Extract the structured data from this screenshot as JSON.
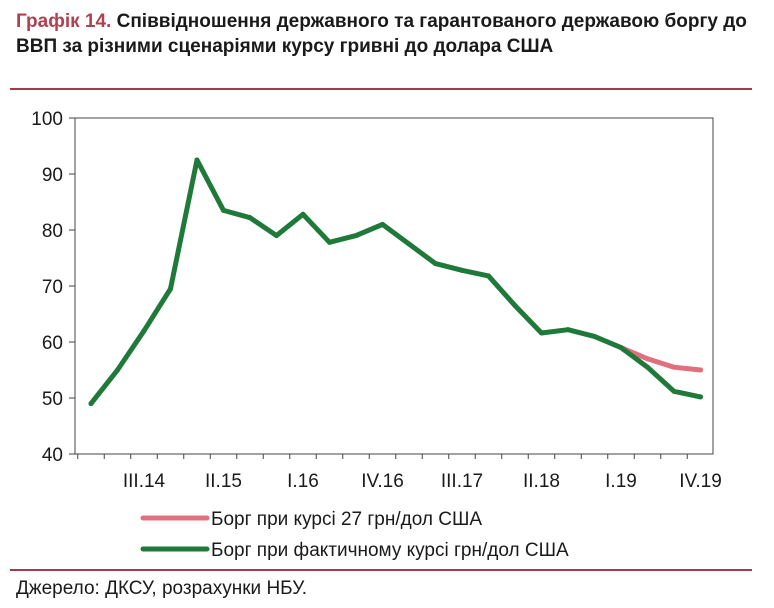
{
  "title": {
    "number": "Графік 14.",
    "text": "Співвідношення державного та гарантованого державою боргу до ВВП за різними сценаріями курсу гривні до долара США"
  },
  "source": "Джерело: ДКСУ, розрахунки НБУ.",
  "chart_data": {
    "type": "line",
    "ylim": [
      40,
      100
    ],
    "yticks": [
      40,
      50,
      60,
      70,
      80,
      90,
      100
    ],
    "xticks": [
      {
        "label": "III.14",
        "x": 2
      },
      {
        "label": "II.15",
        "x": 5
      },
      {
        "label": "I.16",
        "x": 8
      },
      {
        "label": "IV.16",
        "x": 11
      },
      {
        "label": "III.17",
        "x": 14
      },
      {
        "label": "II.18",
        "x": 17
      },
      {
        "label": "I.19",
        "x": 20
      },
      {
        "label": "IV.19",
        "x": 23
      }
    ],
    "series": [
      {
        "name": "Борг при курсі 27 грн/дол США",
        "color": "#e0707f",
        "x": [
          20,
          21,
          22,
          23
        ],
        "y": [
          59,
          57,
          55.5,
          55
        ]
      },
      {
        "name": "Борг при фактичному курсі грн/дол США",
        "color": "#1f7a3a",
        "x": [
          0,
          1,
          2,
          3,
          4,
          5,
          6,
          7,
          8,
          9,
          10,
          11,
          12,
          13,
          14,
          15,
          16,
          17,
          18,
          19,
          20,
          21,
          22,
          23
        ],
        "y": [
          49,
          55,
          62,
          69.5,
          92.5,
          83.5,
          82.2,
          79,
          82.8,
          77.8,
          79,
          81,
          77.5,
          74,
          72.8,
          71.8,
          66.5,
          61.6,
          62.2,
          61,
          59,
          55.5,
          51.2,
          50.2
        ]
      }
    ]
  }
}
